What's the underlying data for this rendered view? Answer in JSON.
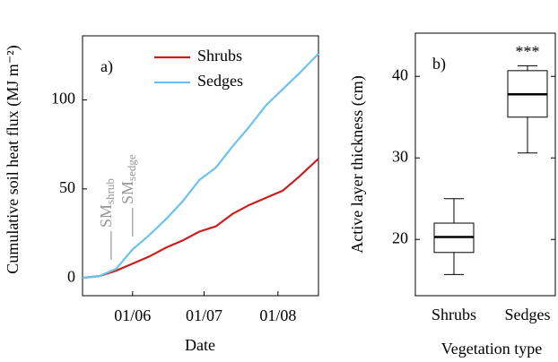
{
  "chart_data": [
    {
      "type": "line",
      "panel_label": "a)",
      "ylabel": "Cumulative soil heat flux (MJ m⁻²)",
      "xlabel": "Date",
      "x": [
        131,
        138,
        145,
        152,
        159,
        166,
        173,
        180,
        187,
        194,
        201,
        208,
        215,
        222,
        230
      ],
      "series": [
        {
          "name": "Shrubs",
          "color": "#c8201e",
          "values": [
            0,
            1,
            4,
            8,
            12,
            17,
            21,
            26,
            29,
            36,
            41,
            45,
            49,
            57,
            67
          ]
        },
        {
          "name": "Sedges",
          "color": "#6ec1ee",
          "values": [
            0,
            1,
            5,
            16,
            24,
            33,
            43,
            55,
            62,
            74,
            85,
            97,
            106,
            115,
            126
          ]
        }
      ],
      "xlim": [
        131,
        230
      ],
      "ylim": [
        -10,
        136
      ],
      "xticks": [
        {
          "value": 152,
          "label": "01/06"
        },
        {
          "value": 182,
          "label": "01/07"
        },
        {
          "value": 213,
          "label": "01/08"
        }
      ],
      "yticks": [
        0,
        50,
        100
      ],
      "legend": "upper center",
      "annotations": [
        {
          "text": "SM",
          "sub": "shrub",
          "x": 143
        },
        {
          "text": "SM",
          "sub": "sedge",
          "x": 152
        }
      ]
    },
    {
      "type": "box",
      "panel_label": "b)",
      "ylabel": "Active layer thickness (cm)",
      "xlabel": "Vegetation type",
      "categories": [
        "Shrubs",
        "Sedges"
      ],
      "boxes": [
        {
          "min": 15.7,
          "q1": 18.4,
          "median": 20.3,
          "q3": 22,
          "max": 25
        },
        {
          "min": 30.6,
          "q1": 35,
          "median": 37.8,
          "q3": 40.7,
          "max": 41.3
        }
      ],
      "ylim": [
        13.1,
        45.3
      ],
      "yticks": [
        20,
        30,
        40
      ],
      "annotations": [
        {
          "text": "***",
          "category": 1
        }
      ]
    }
  ]
}
